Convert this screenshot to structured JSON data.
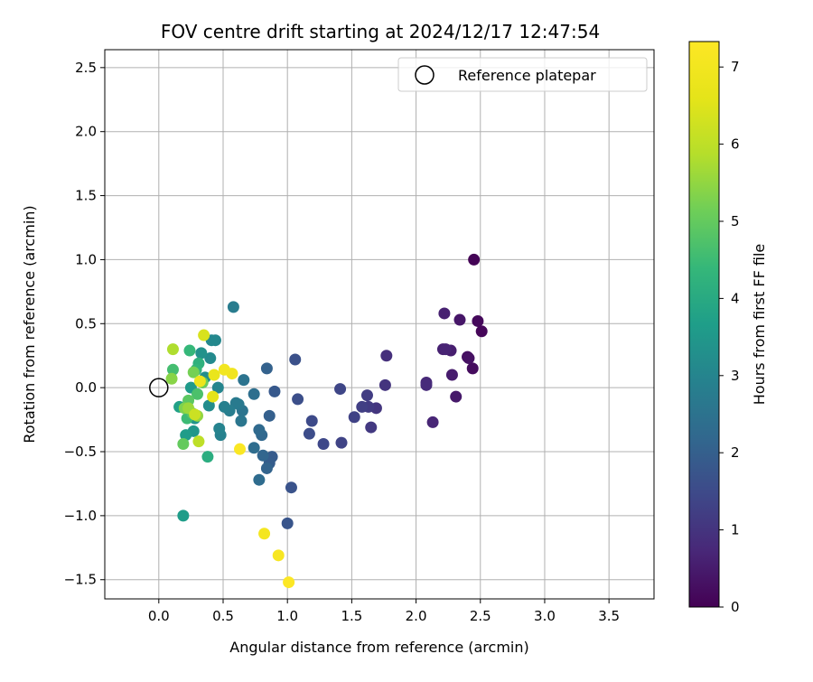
{
  "chart_data": {
    "type": "scatter",
    "title": "FOV centre drift starting at 2024/12/17 12:47:54",
    "xlabel": "Angular distance from reference (arcmin)",
    "ylabel": "Rotation from reference (arcmin)",
    "xlim": [
      -0.42,
      3.85
    ],
    "ylim": [
      -1.65,
      2.64
    ],
    "xticks": [
      "0.0",
      "0.5",
      "1.0",
      "1.5",
      "2.0",
      "2.5",
      "3.0",
      "3.5"
    ],
    "xtick_values": [
      0,
      0.5,
      1,
      1.5,
      2,
      2.5,
      3,
      3.5
    ],
    "yticks": [
      "−1.5",
      "−1.0",
      "−0.5",
      "0.0",
      "0.5",
      "1.0",
      "1.5",
      "2.0",
      "2.5"
    ],
    "ytick_values": [
      -1.5,
      -1,
      -0.5,
      0,
      0.5,
      1,
      1.5,
      2,
      2.5
    ],
    "grid": true,
    "legend": {
      "position": "top-right",
      "entries": [
        "Reference platepar"
      ]
    },
    "reference_point": {
      "x": 0,
      "y": 0,
      "label": "Reference platepar"
    },
    "colorbar": {
      "label": "Hours from first FF file",
      "min": 0,
      "max": 7.33,
      "colormap": "viridis",
      "ticks": [
        "0",
        "1",
        "2",
        "3",
        "4",
        "5",
        "6",
        "7"
      ],
      "tick_values": [
        0,
        1,
        2,
        3,
        4,
        5,
        6,
        7
      ]
    },
    "points": [
      {
        "x": 2.45,
        "y": 1.0,
        "h": 0.05
      },
      {
        "x": 2.51,
        "y": 0.44,
        "h": 0.1
      },
      {
        "x": 2.48,
        "y": 0.52,
        "h": 0.15
      },
      {
        "x": 2.44,
        "y": 0.15,
        "h": 0.2
      },
      {
        "x": 2.4,
        "y": 0.24,
        "h": 0.25
      },
      {
        "x": 2.41,
        "y": 0.23,
        "h": 0.3
      },
      {
        "x": 2.34,
        "y": 0.53,
        "h": 0.4
      },
      {
        "x": 2.31,
        "y": -0.07,
        "h": 0.45
      },
      {
        "x": 2.28,
        "y": 0.1,
        "h": 0.5
      },
      {
        "x": 2.27,
        "y": 0.29,
        "h": 0.55
      },
      {
        "x": 2.22,
        "y": 0.58,
        "h": 0.6
      },
      {
        "x": 2.21,
        "y": 0.3,
        "h": 0.6
      },
      {
        "x": 2.23,
        "y": 0.3,
        "h": 0.65
      },
      {
        "x": 2.13,
        "y": -0.27,
        "h": 0.7
      },
      {
        "x": 2.08,
        "y": 0.04,
        "h": 0.75
      },
      {
        "x": 2.08,
        "y": 0.02,
        "h": 0.8
      },
      {
        "x": 1.77,
        "y": 0.25,
        "h": 0.9
      },
      {
        "x": 1.76,
        "y": 0.02,
        "h": 1.0
      },
      {
        "x": 1.69,
        "y": -0.16,
        "h": 1.05
      },
      {
        "x": 1.65,
        "y": -0.31,
        "h": 1.1
      },
      {
        "x": 1.63,
        "y": -0.15,
        "h": 1.15
      },
      {
        "x": 1.62,
        "y": -0.06,
        "h": 1.2
      },
      {
        "x": 1.58,
        "y": -0.15,
        "h": 1.25
      },
      {
        "x": 1.52,
        "y": -0.23,
        "h": 1.3
      },
      {
        "x": 1.42,
        "y": -0.43,
        "h": 1.35
      },
      {
        "x": 1.41,
        "y": -0.01,
        "h": 1.4
      },
      {
        "x": 1.28,
        "y": -0.44,
        "h": 1.45
      },
      {
        "x": 1.19,
        "y": -0.26,
        "h": 1.5
      },
      {
        "x": 1.17,
        "y": -0.36,
        "h": 1.55
      },
      {
        "x": 1.08,
        "y": -0.09,
        "h": 1.6
      },
      {
        "x": 1.06,
        "y": 0.22,
        "h": 1.65
      },
      {
        "x": 1.03,
        "y": -0.78,
        "h": 1.7
      },
      {
        "x": 1.0,
        "y": -1.06,
        "h": 1.75
      },
      {
        "x": 0.9,
        "y": -0.03,
        "h": 1.85
      },
      {
        "x": 0.88,
        "y": -0.54,
        "h": 1.9
      },
      {
        "x": 0.86,
        "y": -0.59,
        "h": 1.95
      },
      {
        "x": 0.86,
        "y": -0.22,
        "h": 2.0
      },
      {
        "x": 0.84,
        "y": 0.15,
        "h": 2.05
      },
      {
        "x": 0.84,
        "y": -0.63,
        "h": 2.1
      },
      {
        "x": 0.81,
        "y": -0.53,
        "h": 2.15
      },
      {
        "x": 0.8,
        "y": -0.37,
        "h": 2.2
      },
      {
        "x": 0.78,
        "y": -0.33,
        "h": 2.25
      },
      {
        "x": 0.78,
        "y": -0.72,
        "h": 2.3
      },
      {
        "x": 0.74,
        "y": -0.47,
        "h": 2.35
      },
      {
        "x": 0.74,
        "y": -0.05,
        "h": 2.4
      },
      {
        "x": 0.66,
        "y": 0.06,
        "h": 2.5
      },
      {
        "x": 0.65,
        "y": -0.18,
        "h": 2.55
      },
      {
        "x": 0.64,
        "y": -0.26,
        "h": 2.6
      },
      {
        "x": 0.62,
        "y": -0.13,
        "h": 2.65
      },
      {
        "x": 0.6,
        "y": -0.12,
        "h": 2.7
      },
      {
        "x": 0.58,
        "y": 0.63,
        "h": 2.75
      },
      {
        "x": 0.55,
        "y": -0.18,
        "h": 2.8
      },
      {
        "x": 0.51,
        "y": -0.15,
        "h": 2.85
      },
      {
        "x": 0.48,
        "y": -0.37,
        "h": 2.9
      },
      {
        "x": 0.47,
        "y": -0.32,
        "h": 2.95
      },
      {
        "x": 0.46,
        "y": 0.0,
        "h": 3.0
      },
      {
        "x": 0.44,
        "y": 0.37,
        "h": 3.05
      },
      {
        "x": 0.41,
        "y": 0.37,
        "h": 3.1
      },
      {
        "x": 0.4,
        "y": 0.23,
        "h": 3.15
      },
      {
        "x": 0.39,
        "y": -0.14,
        "h": 3.2
      },
      {
        "x": 0.36,
        "y": 0.08,
        "h": 3.25
      },
      {
        "x": 0.33,
        "y": 0.27,
        "h": 3.35
      },
      {
        "x": 0.28,
        "y": -0.24,
        "h": 3.4
      },
      {
        "x": 0.27,
        "y": -0.34,
        "h": 3.45
      },
      {
        "x": 0.25,
        "y": 0.0,
        "h": 3.55
      },
      {
        "x": 0.21,
        "y": -0.37,
        "h": 3.6
      },
      {
        "x": 0.19,
        "y": -1.0,
        "h": 3.65
      },
      {
        "x": 0.16,
        "y": -0.15,
        "h": 3.75
      },
      {
        "x": 0.38,
        "y": -0.54,
        "h": 4.1
      },
      {
        "x": 0.31,
        "y": 0.19,
        "h": 4.2
      },
      {
        "x": 0.29,
        "y": 0.14,
        "h": 4.3
      },
      {
        "x": 0.24,
        "y": 0.29,
        "h": 4.4
      },
      {
        "x": 0.22,
        "y": -0.24,
        "h": 4.5
      },
      {
        "x": 0.11,
        "y": 0.14,
        "h": 4.6
      },
      {
        "x": 0.3,
        "y": -0.05,
        "h": 4.7
      },
      {
        "x": 0.26,
        "y": -0.2,
        "h": 4.8
      },
      {
        "x": 0.23,
        "y": -0.1,
        "h": 4.9
      },
      {
        "x": 0.19,
        "y": -0.44,
        "h": 5.0
      },
      {
        "x": 0.34,
        "y": 0.04,
        "h": 5.1
      },
      {
        "x": 0.27,
        "y": 0.12,
        "h": 5.2
      },
      {
        "x": 0.2,
        "y": -0.16,
        "h": 5.3
      },
      {
        "x": 0.1,
        "y": 0.07,
        "h": 5.4
      },
      {
        "x": 0.3,
        "y": -0.22,
        "h": 5.5
      },
      {
        "x": 0.23,
        "y": -0.16,
        "h": 5.6
      },
      {
        "x": 0.11,
        "y": 0.3,
        "h": 5.8
      },
      {
        "x": 0.31,
        "y": -0.42,
        "h": 6.0
      },
      {
        "x": 0.28,
        "y": -0.21,
        "h": 6.2
      },
      {
        "x": 0.35,
        "y": 0.41,
        "h": 6.4
      },
      {
        "x": 0.42,
        "y": -0.07,
        "h": 6.6
      },
      {
        "x": 0.43,
        "y": 0.1,
        "h": 6.75
      },
      {
        "x": 0.32,
        "y": 0.05,
        "h": 6.85
      },
      {
        "x": 0.57,
        "y": 0.11,
        "h": 6.95
      },
      {
        "x": 0.51,
        "y": 0.14,
        "h": 7.0
      },
      {
        "x": 0.82,
        "y": -1.14,
        "h": 7.05
      },
      {
        "x": 0.93,
        "y": -1.31,
        "h": 7.15
      },
      {
        "x": 0.63,
        "y": -0.48,
        "h": 7.25
      },
      {
        "x": 1.01,
        "y": -1.52,
        "h": 7.3
      }
    ]
  }
}
